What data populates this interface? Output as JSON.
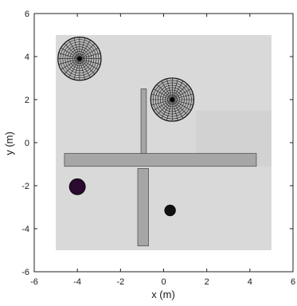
{
  "chart_data": {
    "type": "scatter",
    "xlabel": "x (m)",
    "ylabel": "y (m)",
    "xlim": [
      -6,
      6
    ],
    "ylim": [
      -6,
      6
    ],
    "xticks": [
      -6,
      -4,
      -2,
      0,
      2,
      4,
      6
    ],
    "yticks": [
      -6,
      -4,
      -2,
      0,
      2,
      4,
      6
    ],
    "grid": false,
    "floor": {
      "x": [
        -5,
        5
      ],
      "y": [
        -5,
        5
      ],
      "color": "#d9d9d9"
    },
    "floor_patch": {
      "x": [
        1.5,
        5
      ],
      "y": [
        -1.1,
        1.5
      ],
      "color": "#d2d2d2"
    },
    "walls": [
      {
        "x": [
          -4.6,
          4.3
        ],
        "y": [
          -1.1,
          -0.5
        ]
      },
      {
        "x": [
          -1.05,
          -0.8
        ],
        "y": [
          -0.5,
          2.5
        ]
      },
      {
        "x": [
          -1.2,
          -0.7
        ],
        "y": [
          -4.8,
          -1.2
        ]
      }
    ],
    "wall_color": "#a6a6a6",
    "spheres": [
      {
        "center": [
          -3.9,
          3.9
        ],
        "radius": 1.0
      },
      {
        "center": [
          0.4,
          2.0
        ],
        "radius": 1.0
      }
    ],
    "points": [
      {
        "center": [
          -4.0,
          -2.05
        ],
        "radius": 0.37,
        "color": "#2a0a2e"
      },
      {
        "center": [
          0.3,
          -3.15
        ],
        "radius": 0.25,
        "color": "#111111"
      }
    ]
  }
}
